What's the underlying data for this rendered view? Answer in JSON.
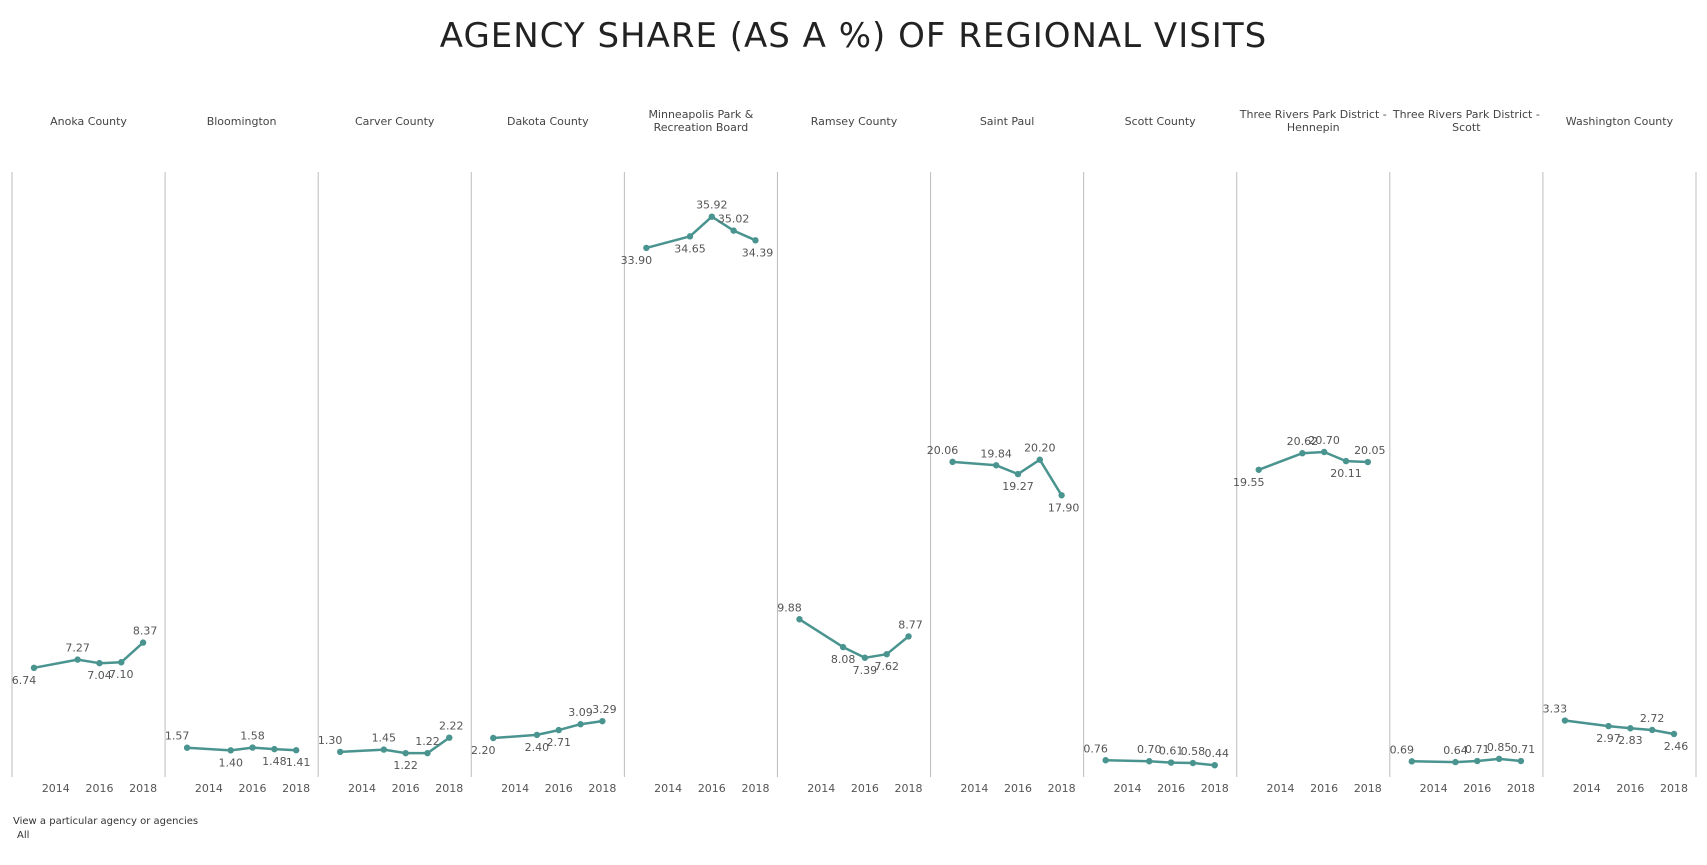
{
  "title": "AGENCY SHARE (AS A %) OF REGIONAL VISITS",
  "filter": {
    "label": "View a particular agency or agencies",
    "value": "All"
  },
  "colors": {
    "line": "#4a9490",
    "divider": "#bdbdbd",
    "text": "#555555"
  },
  "chart_data": {
    "type": "line",
    "x": [
      2013,
      2014,
      2015,
      2016,
      2017,
      2018
    ],
    "x_tick_labels": [
      "2014",
      "2016",
      "2018"
    ],
    "x_ticks": [
      2014,
      2016,
      2018
    ],
    "ylim": [
      0,
      37
    ],
    "series": [
      {
        "name": "Anoka County",
        "x": [
          2013,
          2015,
          2016,
          2017,
          2018
        ],
        "values": [
          6.74,
          7.27,
          7.04,
          7.1,
          8.37
        ]
      },
      {
        "name": "Bloomington",
        "x": [
          2013,
          2015,
          2016,
          2017,
          2018
        ],
        "values": [
          1.57,
          1.4,
          1.58,
          1.48,
          1.41
        ]
      },
      {
        "name": "Carver County",
        "x": [
          2013,
          2015,
          2016,
          2017,
          2018
        ],
        "values": [
          1.3,
          1.45,
          1.22,
          1.22,
          2.22
        ]
      },
      {
        "name": "Dakota County",
        "x": [
          2013,
          2015,
          2016,
          2017,
          2018
        ],
        "values": [
          2.2,
          2.4,
          2.71,
          3.09,
          3.29
        ]
      },
      {
        "name": "Minneapolis Park & Recreation Board",
        "x": [
          2013,
          2015,
          2016,
          2017,
          2018
        ],
        "values": [
          33.9,
          34.65,
          35.92,
          35.02,
          34.39
        ]
      },
      {
        "name": "Ramsey County",
        "x": [
          2013,
          2015,
          2016,
          2017,
          2018
        ],
        "values": [
          9.88,
          8.08,
          7.39,
          7.62,
          8.77
        ]
      },
      {
        "name": "Saint Paul",
        "x": [
          2013,
          2015,
          2016,
          2017,
          2018
        ],
        "values": [
          20.06,
          19.84,
          19.27,
          20.2,
          17.9
        ]
      },
      {
        "name": "Scott County",
        "x": [
          2013,
          2015,
          2016,
          2017,
          2018
        ],
        "values": [
          0.76,
          0.7,
          0.61,
          0.58,
          0.44
        ]
      },
      {
        "name": "Three Rivers Park District - Hennepin",
        "x": [
          2013,
          2015,
          2016,
          2017,
          2018
        ],
        "values": [
          19.55,
          20.62,
          20.7,
          20.11,
          20.05
        ]
      },
      {
        "name": "Three Rivers Park District - Scott",
        "x": [
          2013,
          2015,
          2016,
          2017,
          2018
        ],
        "values": [
          0.69,
          0.64,
          0.71,
          0.85,
          0.71
        ]
      },
      {
        "name": "Washington County",
        "x": [
          2013,
          2015,
          2016,
          2017,
          2018
        ],
        "values": [
          3.33,
          2.97,
          2.83,
          2.72,
          2.46
        ]
      }
    ],
    "label_positions": [
      [
        "below",
        "above",
        "below",
        "below",
        "above"
      ],
      [
        "above",
        "below",
        "above",
        "below",
        "below"
      ],
      [
        "above",
        "above",
        "below",
        "above",
        "above"
      ],
      [
        "below",
        "below",
        "below",
        "above",
        "above"
      ],
      [
        "below",
        "below",
        "above",
        "above",
        "below"
      ],
      [
        "above",
        "below",
        "below",
        "below",
        "above"
      ],
      [
        "above",
        "above",
        "below",
        "above",
        "below"
      ],
      [
        "above",
        "above",
        "above",
        "above",
        "above"
      ],
      [
        "below",
        "above",
        "above",
        "below",
        "above"
      ],
      [
        "above",
        "above",
        "above",
        "above",
        "above"
      ],
      [
        "above",
        "below",
        "below",
        "above",
        "below"
      ]
    ],
    "grid": false,
    "legend": "none"
  }
}
